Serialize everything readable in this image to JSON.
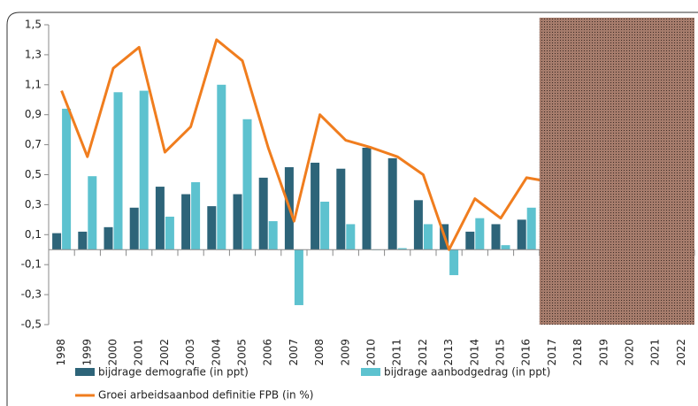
{
  "chart_data": {
    "type": "bar_line",
    "categories": [
      "1998",
      "1999",
      "2000",
      "2001",
      "2002",
      "2003",
      "2004",
      "2005",
      "2006",
      "2007",
      "2008",
      "2009",
      "2010",
      "2011",
      "2012",
      "2013",
      "2014",
      "2015",
      "2016",
      "2017",
      "2018",
      "2019",
      "2020",
      "2021",
      "2022"
    ],
    "series": [
      {
        "name": "bijdrage demografie (in ppt)",
        "color": "#2d6479",
        "kind": "bar",
        "values": [
          0.11,
          0.12,
          0.15,
          0.28,
          0.42,
          0.37,
          0.29,
          0.37,
          0.48,
          0.55,
          0.58,
          0.54,
          0.68,
          0.61,
          0.33,
          0.17,
          0.12,
          0.17,
          0.2,
          null,
          null,
          null,
          null,
          null,
          null
        ]
      },
      {
        "name": "bijdrage aanbodgedrag (in ppt)",
        "color": "#5dc2cf",
        "kind": "bar",
        "values": [
          0.94,
          0.49,
          1.05,
          1.06,
          0.22,
          0.45,
          1.1,
          0.87,
          0.19,
          -0.37,
          0.32,
          0.17,
          0.0,
          0.01,
          0.17,
          -0.17,
          0.21,
          0.03,
          0.28,
          null,
          null,
          null,
          null,
          null,
          null
        ]
      },
      {
        "name": "Groei arbeidsaanbod definitie FPB (in %)",
        "color": "#f07d1e",
        "kind": "line",
        "values": [
          1.06,
          0.62,
          1.21,
          1.35,
          0.65,
          0.82,
          1.4,
          1.26,
          0.68,
          0.19,
          0.9,
          0.73,
          0.68,
          0.62,
          0.5,
          0.0,
          0.34,
          0.21,
          0.48,
          0.45,
          null,
          null,
          null,
          null,
          null
        ]
      }
    ],
    "ylim": [
      -0.5,
      1.5
    ],
    "yticks": [
      {
        "value": -0.5,
        "label": "-0,5"
      },
      {
        "value": -0.3,
        "label": "-0,3"
      },
      {
        "value": -0.1,
        "label": "-0,1"
      },
      {
        "value": 0.1,
        "label": "0,1"
      },
      {
        "value": 0.3,
        "label": "0,3"
      },
      {
        "value": 0.5,
        "label": "0,5"
      },
      {
        "value": 0.7,
        "label": "0,7"
      },
      {
        "value": 0.9,
        "label": "0,9"
      },
      {
        "value": 1.1,
        "label": "1,1"
      },
      {
        "value": 1.3,
        "label": "1,3"
      },
      {
        "value": 1.5,
        "label": "1,5"
      }
    ],
    "shaded_from": "2017",
    "shade_color": "#a67c6c"
  }
}
